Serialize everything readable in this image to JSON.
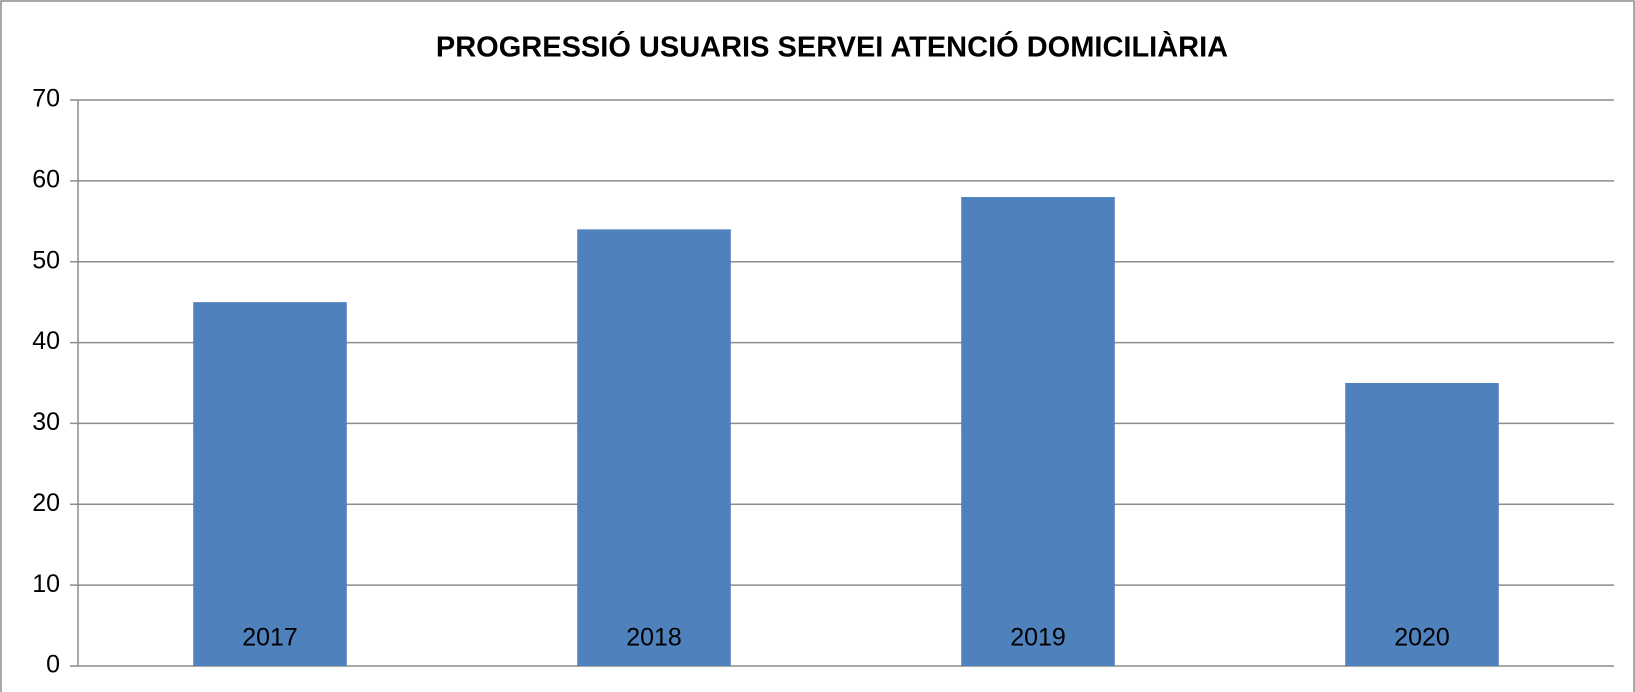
{
  "chart_data": {
    "type": "bar",
    "title": "PROGRESSIÓ USUARIS SERVEI ATENCIÓ DOMICILIÀRIA",
    "categories": [
      "2017",
      "2018",
      "2019",
      "2020"
    ],
    "values": [
      45,
      54,
      58,
      35
    ],
    "color": "#4f81bd",
    "ylim": [
      0,
      70
    ],
    "yticks": [
      0,
      10,
      20,
      30,
      40,
      50,
      60,
      70
    ],
    "grid": true
  }
}
